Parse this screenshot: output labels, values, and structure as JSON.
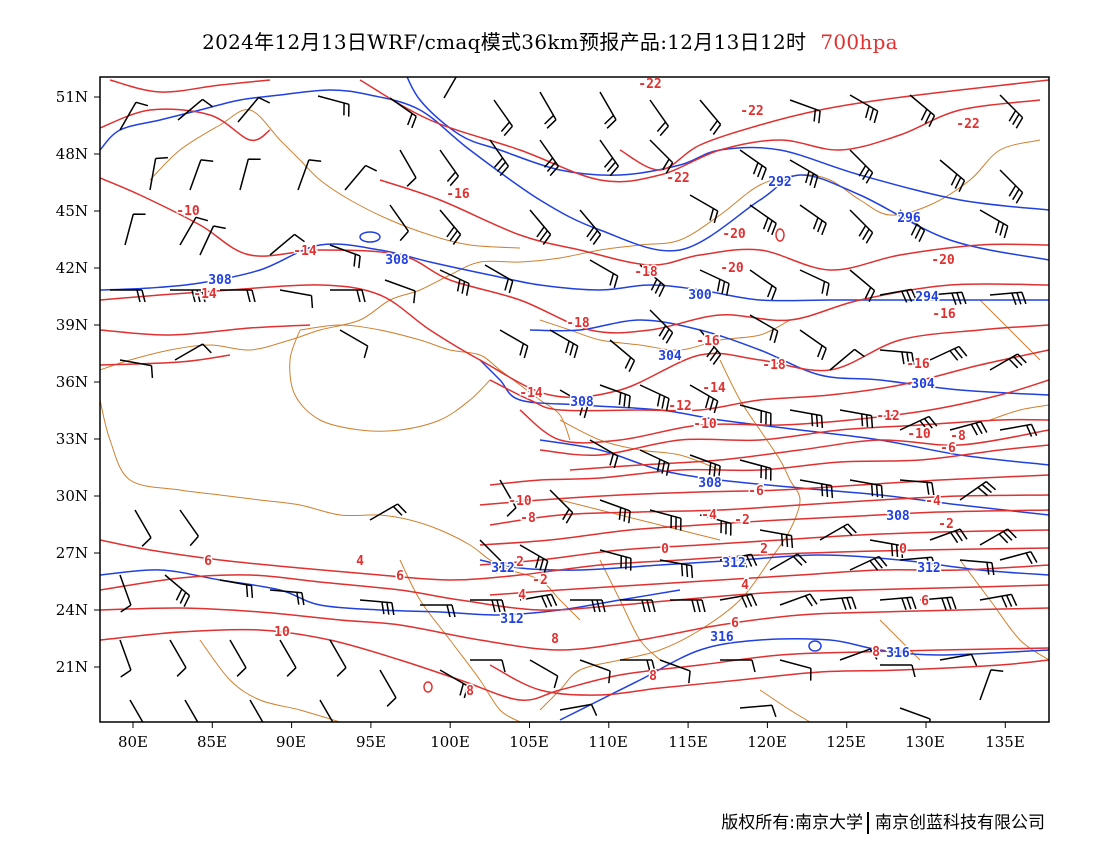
{
  "title": {
    "main": "2024年12月13日WRF/cmaq模式36km预报产品:12月13日12时",
    "level": "700hpa",
    "level_color": "#e03030"
  },
  "colors": {
    "temperature_contour": "#e03030",
    "geopotential_contour": "#2040e0",
    "boundary": "#d08030",
    "wind_barb": "#000000"
  },
  "axes": {
    "lat_labels": [
      "51N",
      "48N",
      "45N",
      "42N",
      "39N",
      "36N",
      "33N",
      "30N",
      "27N",
      "24N",
      "21N"
    ],
    "lon_labels": [
      "80E",
      "85E",
      "90E",
      "95E",
      "100E",
      "105E",
      "110E",
      "115E",
      "120E",
      "125E",
      "130E",
      "135E"
    ]
  },
  "contour_labels": {
    "temperature": [
      "-22",
      "-22",
      "-22",
      "-22",
      "-20",
      "-20",
      "-20",
      "-18",
      "-18",
      "-18",
      "-16",
      "-16",
      "-16",
      "-16",
      "-14",
      "-14",
      "-14",
      "-14",
      "-12",
      "-12",
      "-10",
      "-10",
      "-10",
      "-10",
      "-8",
      "-8",
      "-6",
      "-6",
      "-4",
      "-4",
      "-2",
      "-2",
      "-2",
      "0",
      "0",
      "2",
      "2",
      "4",
      "4",
      "4",
      "6",
      "6",
      "6",
      "6",
      "8",
      "8",
      "8",
      "8",
      "10"
    ],
    "height": [
      "292",
      "296",
      "294",
      "300",
      "304",
      "304",
      "308",
      "308",
      "308",
      "308",
      "308",
      "312",
      "312",
      "312",
      "312",
      "316",
      "316"
    ]
  },
  "copyright": {
    "left": "版权所有:南京大学",
    "right": "南京创蓝科技有限公司"
  }
}
